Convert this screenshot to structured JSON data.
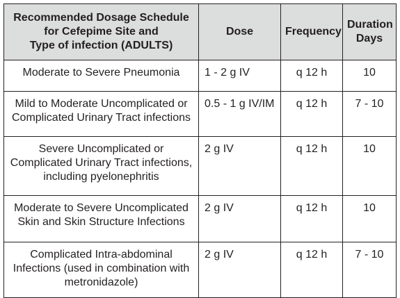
{
  "table": {
    "headers": {
      "site": "Recommended Dosage Schedule\nfor Cefepime Site and\nType of infection (ADULTS)",
      "dose": "Dose",
      "frequency": "Frequency",
      "duration": "Duration\nDays"
    },
    "rows": [
      {
        "site": "Moderate to Severe Pneumonia",
        "dose": "1 - 2 g IV",
        "frequency": "q 12 h",
        "duration": "10"
      },
      {
        "site": "Mild to Moderate Uncomplicated or\nComplicated Urinary Tract infections",
        "dose": "0.5 - 1 g IV/IM",
        "frequency": "q 12 h",
        "duration": "7 - 10"
      },
      {
        "site": "Severe Uncomplicated or\nComplicated Urinary Tract infections,\nincluding pyelonephritis",
        "dose": "2 g IV",
        "frequency": "q 12 h",
        "duration": "10"
      },
      {
        "site": "Moderate to Severe Uncomplicated\nSkin and Skin Structure Infections",
        "dose": "2 g IV",
        "frequency": "q 12 h",
        "duration": "10"
      },
      {
        "site": "Complicated Intra-abdominal\nInfections (used in combination with\nmetronidazole)",
        "dose": "2 g IV",
        "frequency": "q 12 h",
        "duration": "7 - 10"
      }
    ]
  },
  "colors": {
    "header_bg": "#dcdddd",
    "border": "#231f20",
    "text": "#231f20"
  }
}
